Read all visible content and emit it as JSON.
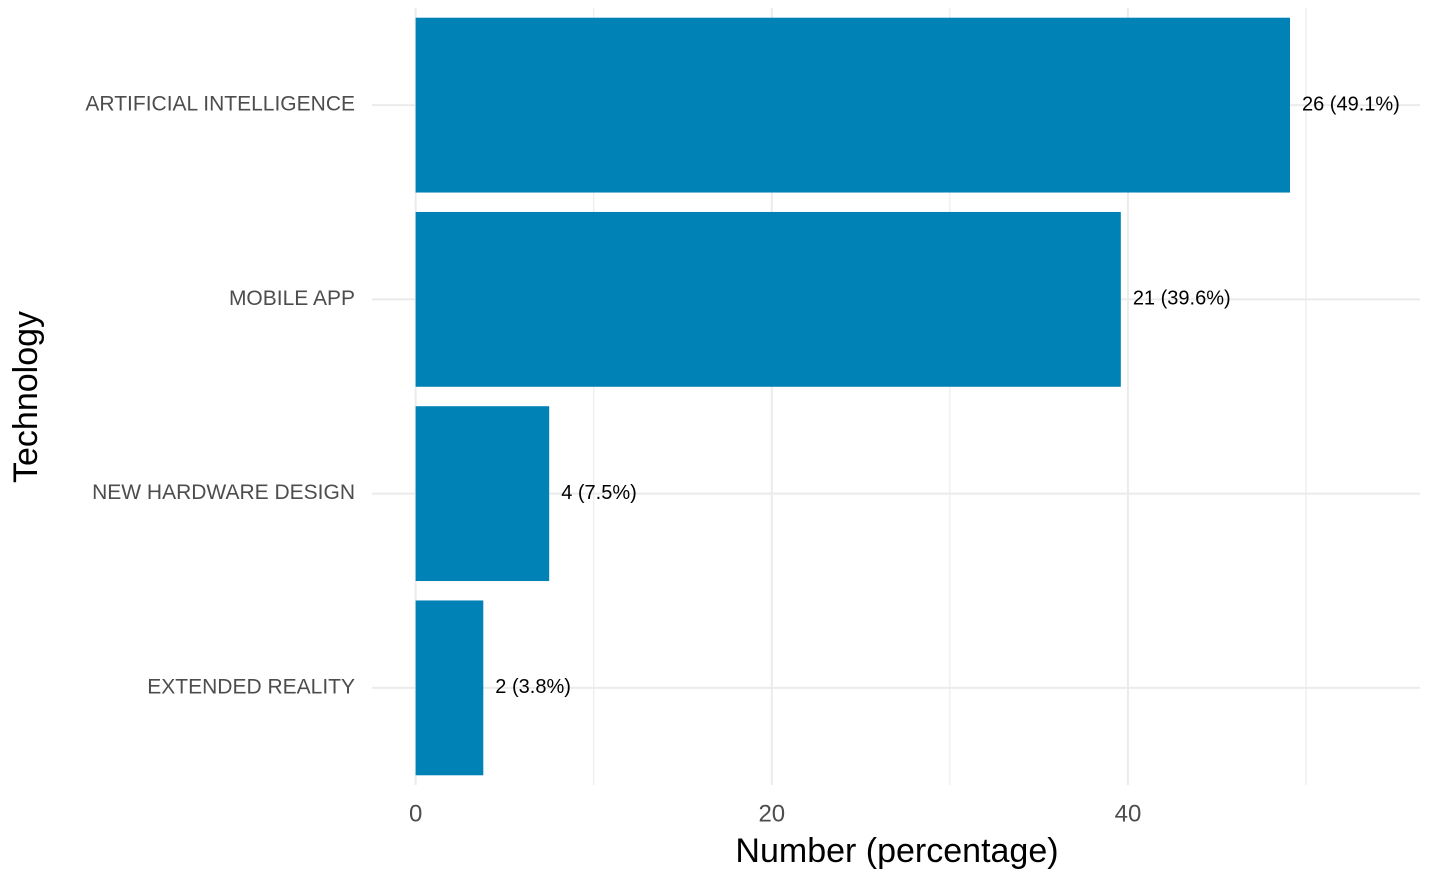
{
  "chart_data": {
    "type": "bar",
    "orientation": "horizontal",
    "x_label": "Number (percentage)",
    "y_label": "Technology",
    "categories": [
      "ARTIFICIAL INTELLIGENCE",
      "MOBILE APP",
      "NEW HARDWARE DESIGN",
      "EXTENDED REALITY"
    ],
    "values": [
      49.1,
      39.6,
      7.5,
      3.8
    ],
    "value_labels": [
      "26 (49.1%)",
      "21 (39.6%)",
      "4 (7.5%)",
      "2 (3.8%)"
    ],
    "color": "#0082b7",
    "xlim": [
      -2.45,
      56.4
    ],
    "xticks": [
      0,
      20,
      40
    ],
    "xminorticks": [
      10,
      30,
      50
    ],
    "grid": true
  }
}
